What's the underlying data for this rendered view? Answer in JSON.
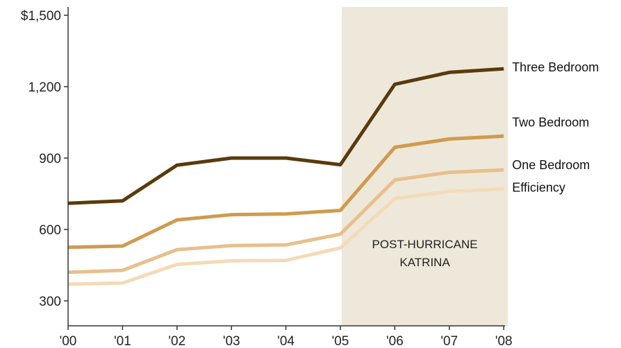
{
  "chart_data": {
    "type": "line",
    "title": "",
    "xlabel": "",
    "ylabel": "",
    "categories": [
      "'00",
      "'01",
      "'02",
      "'03",
      "'04",
      "'05",
      "'06",
      "'07",
      "'08"
    ],
    "y_tick_values": [
      300,
      600,
      900,
      1200,
      1500
    ],
    "y_tick_labels": [
      "300",
      "600",
      "900",
      "1,200",
      "$1,500"
    ],
    "ylim": [
      195,
      1500
    ],
    "grid": false,
    "shaded_region": {
      "from": "'05",
      "to": "'08",
      "label_lines": [
        "POST-HURRICANE",
        "KATRINA"
      ],
      "color": "#ede8da"
    },
    "series": [
      {
        "name": "Three Bedroom",
        "color": "#5a3a0c",
        "values": [
          710,
          720,
          870,
          900,
          900,
          872,
          1210,
          1260,
          1275
        ]
      },
      {
        "name": "Two Bedroom",
        "color": "#d09a4e",
        "values": [
          525,
          530,
          640,
          662,
          665,
          680,
          945,
          980,
          992
        ]
      },
      {
        "name": "One Bedroom",
        "color": "#e8bf8c",
        "values": [
          420,
          428,
          515,
          532,
          535,
          580,
          808,
          840,
          850
        ]
      },
      {
        "name": "Efficiency",
        "color": "#f3dbb8",
        "values": [
          370,
          375,
          453,
          468,
          470,
          522,
          730,
          760,
          770
        ]
      }
    ]
  }
}
